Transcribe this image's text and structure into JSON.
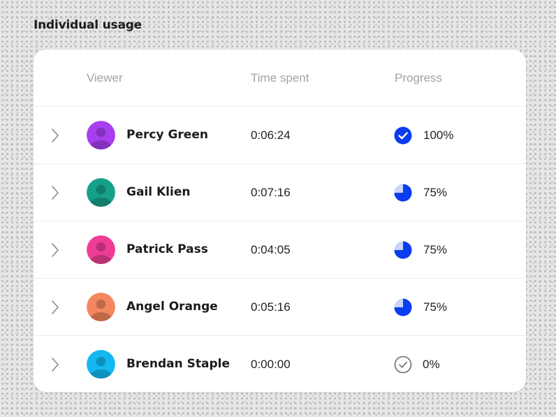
{
  "page": {
    "title": "Individual usage"
  },
  "table": {
    "columns": {
      "viewer": "Viewer",
      "time": "Time spent",
      "progress": "Progress"
    },
    "rows": [
      {
        "name": "Percy Green",
        "time": "0:06:24",
        "progress_label": "100%",
        "progress_fraction": 1.0,
        "avatar_color": "#a83ef0",
        "icon": "check-circle-icon"
      },
      {
        "name": "Gail Klien",
        "time": "0:07:16",
        "progress_label": "75%",
        "progress_fraction": 0.75,
        "avatar_color": "#16a08a",
        "icon": "pie-progress-icon"
      },
      {
        "name": "Patrick Pass",
        "time": "0:04:05",
        "progress_label": "75%",
        "progress_fraction": 0.75,
        "avatar_color": "#ef3d95",
        "icon": "pie-progress-icon"
      },
      {
        "name": "Angel Orange",
        "time": "0:05:16",
        "progress_label": "75%",
        "progress_fraction": 0.75,
        "avatar_color": "#f5875e",
        "icon": "pie-progress-icon"
      },
      {
        "name": "Brendan Staple",
        "time": "0:00:00",
        "progress_label": "0%",
        "progress_fraction": 0.0,
        "avatar_color": "#12b8ef",
        "icon": "empty-check-circle-icon"
      }
    ]
  },
  "colors": {
    "progress_accent": "#0b3cf0",
    "progress_track": "#c9d5fa",
    "empty_icon": "#6b6b6b"
  }
}
